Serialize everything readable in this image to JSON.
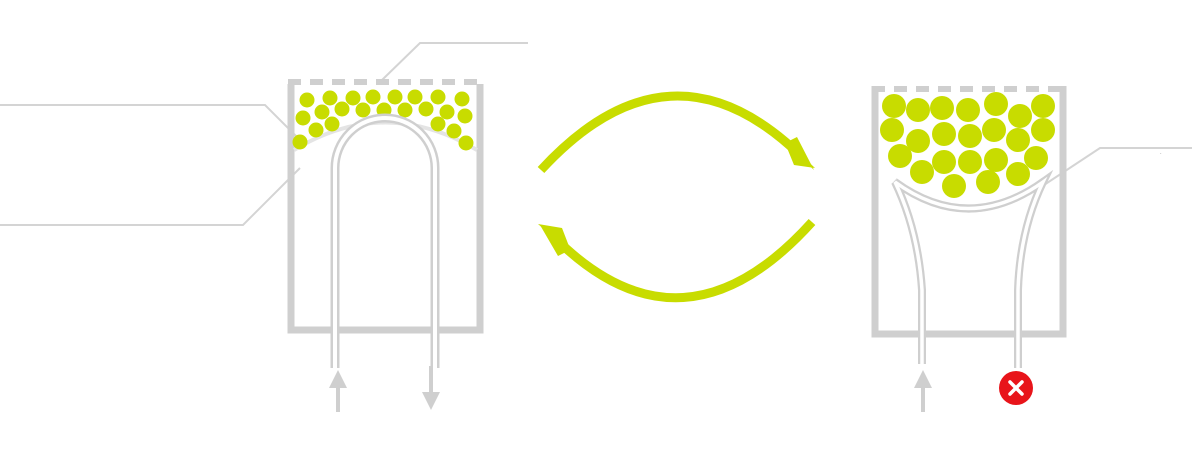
{
  "diagram": {
    "colors": {
      "granules": "#c8dc00",
      "vessel": "#cfcfcf",
      "leader_lines": "#d4d4d4",
      "blocked_marker": "#e8141a",
      "background": "#ffffff"
    },
    "panels": [
      {
        "state": "open",
        "outlet": "flow-out-arrow"
      },
      {
        "state": "collapsed",
        "outlet": "blocked-x-marker"
      }
    ],
    "cycle_arrows": [
      "forward-arc-arrow",
      "return-arc-arrow"
    ],
    "small_mark": "-"
  }
}
